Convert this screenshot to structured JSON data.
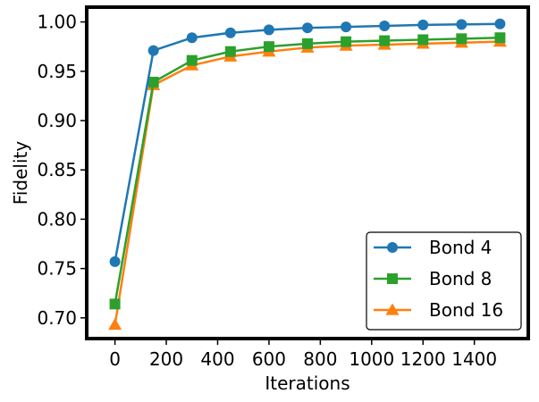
{
  "chart_data": {
    "type": "line",
    "title": "",
    "xlabel": "Iterations",
    "ylabel": "Fidelity",
    "x": [
      0,
      150,
      300,
      450,
      600,
      750,
      900,
      1050,
      1200,
      1350,
      1500
    ],
    "xlim": [
      -110,
      1610
    ],
    "ylim": [
      0.679,
      1.015
    ],
    "xticks": [
      0,
      200,
      400,
      600,
      800,
      1000,
      1200,
      1400
    ],
    "xtick_labels": [
      "0",
      "200",
      "400",
      "600",
      "800",
      "1000",
      "1200",
      "1400"
    ],
    "yticks": [
      0.7,
      0.75,
      0.8,
      0.85,
      0.9,
      0.95,
      1.0
    ],
    "ytick_labels": [
      "0.70",
      "0.75",
      "0.80",
      "0.85",
      "0.90",
      "0.95",
      "1.00"
    ],
    "grid": false,
    "legend_position": "lower-right",
    "series": [
      {
        "name": "Bond 4",
        "color": "#1f77b4",
        "marker": "circle",
        "values": [
          0.757,
          0.971,
          0.984,
          0.989,
          0.992,
          0.994,
          0.995,
          0.996,
          0.997,
          0.9975,
          0.998
        ]
      },
      {
        "name": "Bond 8",
        "color": "#2ca02c",
        "marker": "square",
        "values": [
          0.714,
          0.939,
          0.961,
          0.97,
          0.975,
          0.978,
          0.98,
          0.981,
          0.982,
          0.983,
          0.984
        ]
      },
      {
        "name": "Bond 16",
        "color": "#ff7f0e",
        "marker": "triangle",
        "values": [
          0.693,
          0.936,
          0.956,
          0.965,
          0.97,
          0.974,
          0.976,
          0.977,
          0.978,
          0.979,
          0.98
        ]
      }
    ]
  }
}
